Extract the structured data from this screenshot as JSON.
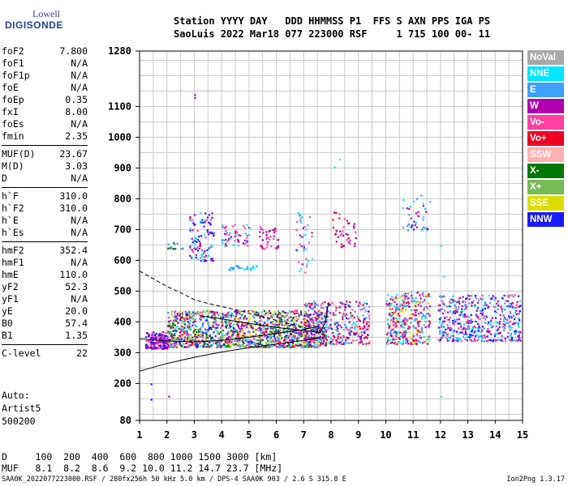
{
  "logo": {
    "line1": "Lowell",
    "line2": "DIGISONDE"
  },
  "header": {
    "line1": "Station YYYY DAY   DDD HHMMSS P1  FFS S AXN PPS IGA PS",
    "line2": "SaoLuis 2022 Mar18 077 223000 RSF     1 715 100 00- 11"
  },
  "params": [
    [
      {
        "k": "foF2",
        "v": "7.800"
      },
      {
        "k": "foF1",
        "v": "N/A"
      },
      {
        "k": "foF1p",
        "v": "N/A"
      },
      {
        "k": "foE",
        "v": "N/A"
      },
      {
        "k": "foEp",
        "v": "0.35"
      },
      {
        "k": "fxI",
        "v": "8.00"
      },
      {
        "k": "foEs",
        "v": "N/A"
      },
      {
        "k": "fmin",
        "v": "2.35"
      }
    ],
    [
      {
        "k": "MUF(D)",
        "v": "23.67"
      },
      {
        "k": "M(D)",
        "v": "3.03"
      },
      {
        "k": "D",
        "v": "N/A"
      }
    ],
    [
      {
        "k": "h`F",
        "v": "310.0"
      },
      {
        "k": "h`F2",
        "v": "310.0"
      },
      {
        "k": "h`E",
        "v": "N/A"
      },
      {
        "k": "h`Es",
        "v": "N/A"
      }
    ],
    [
      {
        "k": "hmF2",
        "v": "352.4"
      },
      {
        "k": "hmF1",
        "v": "N/A"
      },
      {
        "k": "hmE",
        "v": "110.0"
      },
      {
        "k": "yF2",
        "v": "52.3"
      },
      {
        "k": "yF1",
        "v": "N/A"
      },
      {
        "k": "yE",
        "v": "20.0"
      },
      {
        "k": "B0",
        "v": "57.4"
      },
      {
        "k": "B1",
        "v": "1.35"
      }
    ],
    [
      {
        "k": "C-level",
        "v": "22"
      }
    ]
  ],
  "auto": {
    "line1": "Auto:",
    "line2": "Artist5",
    "line3": "500200"
  },
  "muf_table": {
    "d_row": "D     100  200  400  600  800 1000 1500 3000 [km]",
    "muf_row": "MUF   8.1  8.2  8.6  9.2 10.0 11.2 14.7 23.7 [MHz]"
  },
  "footer": {
    "left": "SAA0K_2022077223000.RSF / 280fx256h 50 kHz 5.0 km / DPS-4 SAA0K 903 / 2.6 S 315.8 E",
    "right": "Ion2Png 1.3.17"
  },
  "legend": [
    {
      "label": "NoVal",
      "color": "#a9a9a9"
    },
    {
      "label": "NNE",
      "color": "#00e5ff"
    },
    {
      "label": "E",
      "color": "#3ca0ff"
    },
    {
      "label": "W",
      "color": "#b000b0"
    },
    {
      "label": "Vo-",
      "color": "#ff40a0"
    },
    {
      "label": "Vo+",
      "color": "#ee0022"
    },
    {
      "label": "SSW",
      "color": "#ffb0b0"
    },
    {
      "label": "X-",
      "color": "#007700"
    },
    {
      "label": "X+",
      "color": "#77bb55"
    },
    {
      "label": "SSE",
      "color": "#dddd00"
    },
    {
      "label": "NNW",
      "color": "#1a1aff"
    }
  ],
  "chart_data": {
    "type": "scatter",
    "title": "",
    "xlabel": "",
    "ylabel": "",
    "xlim": [
      1,
      15
    ],
    "ylim": [
      80,
      1280
    ],
    "x_ticks": [
      1,
      2,
      3,
      4,
      5,
      6,
      7,
      8,
      9,
      10,
      11,
      12,
      13,
      14,
      15
    ],
    "y_ticks": [
      80,
      200,
      300,
      400,
      500,
      600,
      700,
      800,
      900,
      1000,
      1100,
      1280
    ],
    "grid": true,
    "curves": [
      {
        "name": "profile",
        "points": [
          [
            1,
            240
          ],
          [
            2,
            265
          ],
          [
            3,
            285
          ],
          [
            4,
            302
          ],
          [
            5,
            316
          ],
          [
            6,
            328
          ],
          [
            7,
            340
          ],
          [
            7.8,
            352
          ]
        ]
      },
      {
        "name": "dashed",
        "style": "dashed",
        "points": [
          [
            1,
            565
          ],
          [
            1.5,
            540
          ],
          [
            2,
            515
          ],
          [
            2.5,
            495
          ],
          [
            3,
            472
          ],
          [
            3.5,
            460
          ],
          [
            4,
            450
          ],
          [
            4.5,
            440
          ],
          [
            5,
            428
          ],
          [
            5.5,
            418
          ],
          [
            6,
            405
          ],
          [
            6.5,
            393
          ],
          [
            7,
            382
          ],
          [
            7.5,
            368
          ],
          [
            7.8,
            355
          ]
        ]
      },
      {
        "name": "trace-a",
        "points": [
          [
            3.2,
            420
          ],
          [
            4,
            410
          ],
          [
            5,
            395
          ],
          [
            6,
            382
          ],
          [
            7,
            372
          ],
          [
            7.6,
            365
          ],
          [
            7.8,
            400
          ],
          [
            7.9,
            460
          ]
        ]
      },
      {
        "name": "trace-b",
        "points": [
          [
            1,
            345
          ],
          [
            2,
            338
          ],
          [
            3,
            335
          ],
          [
            4,
            340
          ],
          [
            5,
            350
          ],
          [
            6,
            362
          ],
          [
            7,
            375
          ],
          [
            7.5,
            385
          ]
        ]
      }
    ],
    "clusters": [
      {
        "x": [
          1.2,
          2.0
        ],
        "y": [
          315,
          370
        ],
        "n": 180,
        "colors": [
          "#1a1aff",
          "#b000b0",
          "#ff40a0"
        ]
      },
      {
        "x": [
          2.0,
          7.8
        ],
        "y": [
          320,
          440
        ],
        "n": 1500,
        "colors": [
          "#b000b0",
          "#ff40a0",
          "#ee0022",
          "#1a1aff",
          "#3ca0ff",
          "#dddd00",
          "#00e5ff",
          "#77bb55",
          "#007700"
        ]
      },
      {
        "x": [
          7.0,
          9.4
        ],
        "y": [
          330,
          470
        ],
        "n": 450,
        "colors": [
          "#b000b0",
          "#ff40a0",
          "#ee0022",
          "#00e5ff",
          "#3ca0ff",
          "#1a1aff",
          "#ffb0b0"
        ]
      },
      {
        "x": [
          10.0,
          11.6
        ],
        "y": [
          330,
          500
        ],
        "n": 380,
        "colors": [
          "#ee0022",
          "#ff40a0",
          "#b000b0",
          "#00e5ff",
          "#3ca0ff",
          "#dddd00"
        ]
      },
      {
        "x": [
          11.9,
          14.9
        ],
        "y": [
          340,
          490
        ],
        "n": 520,
        "colors": [
          "#00e5ff",
          "#3ca0ff",
          "#1a1aff",
          "#ff40a0",
          "#b000b0"
        ]
      },
      {
        "x": [
          2.8,
          3.7
        ],
        "y": [
          600,
          760
        ],
        "n": 110,
        "colors": [
          "#b000b0",
          "#ff40a0",
          "#1a1aff",
          "#00e5ff"
        ]
      },
      {
        "x": [
          4.0,
          5.0
        ],
        "y": [
          650,
          720
        ],
        "n": 60,
        "colors": [
          "#b000b0",
          "#ff40a0",
          "#00e5ff"
        ]
      },
      {
        "x": [
          5.3,
          6.1
        ],
        "y": [
          640,
          720
        ],
        "n": 45,
        "colors": [
          "#b000b0",
          "#ff40a0"
        ]
      },
      {
        "x": [
          6.7,
          7.3
        ],
        "y": [
          560,
          760
        ],
        "n": 40,
        "colors": [
          "#b000b0",
          "#ff40a0",
          "#00e5ff"
        ]
      },
      {
        "x": [
          8.0,
          8.9
        ],
        "y": [
          640,
          760
        ],
        "n": 40,
        "colors": [
          "#b000b0",
          "#ee0022",
          "#ff40a0"
        ]
      },
      {
        "x": [
          10.6,
          11.6
        ],
        "y": [
          700,
          820
        ],
        "n": 40,
        "colors": [
          "#00e5ff",
          "#3ca0ff",
          "#1a1aff",
          "#b000b0"
        ]
      },
      {
        "x": [
          4.2,
          5.6
        ],
        "y": [
          570,
          585
        ],
        "n": 25,
        "colors": [
          "#00e5ff",
          "#3ca0ff"
        ]
      },
      {
        "x": [
          2.0,
          2.6
        ],
        "y": [
          640,
          660
        ],
        "n": 15,
        "colors": [
          "#007700",
          "#3ca0ff"
        ]
      }
    ],
    "isolated_points": [
      {
        "x": 3.0,
        "y": 1140,
        "color": "#b000b0"
      },
      {
        "x": 3.0,
        "y": 1130,
        "color": "#b000b0"
      },
      {
        "x": 8.3,
        "y": 930,
        "color": "#00e5ff"
      },
      {
        "x": 8.1,
        "y": 905,
        "color": "#00e5ff"
      },
      {
        "x": 12.0,
        "y": 650,
        "color": "#00e5ff"
      },
      {
        "x": 12.0,
        "y": 160,
        "color": "#00e5ff"
      },
      {
        "x": 1.4,
        "y": 150,
        "color": "#1a1aff"
      },
      {
        "x": 1.4,
        "y": 200,
        "color": "#1a1aff"
      },
      {
        "x": 2.05,
        "y": 160,
        "color": "#b000b0"
      },
      {
        "x": 12.1,
        "y": 550,
        "color": "#00e5ff"
      }
    ]
  }
}
